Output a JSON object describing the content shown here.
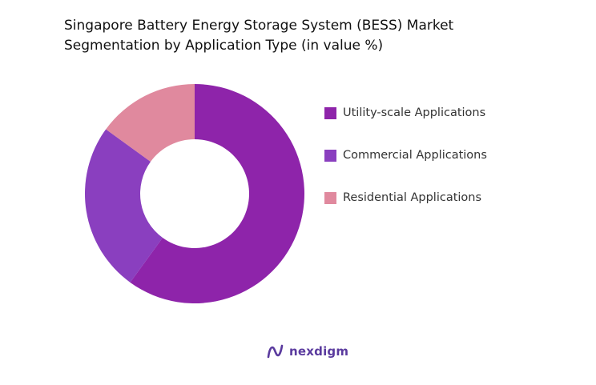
{
  "chart_data": {
    "type": "pie",
    "title_line1": "Singapore Battery Energy Storage System (BESS) Market",
    "title_line2": "Segmentation by Application Type (in value %)",
    "series": [
      {
        "name": "Utility-scale Applications",
        "value": 60,
        "color": "#8e24aa"
      },
      {
        "name": "Commercial Applications",
        "value": 25,
        "color": "#8a3fbf"
      },
      {
        "name": "Residential Applications",
        "value": 15,
        "color": "#e0899e"
      }
    ],
    "legend_position": "right"
  },
  "brand": {
    "name": "nexdigm",
    "icon": "nexdigm-logo-icon"
  }
}
